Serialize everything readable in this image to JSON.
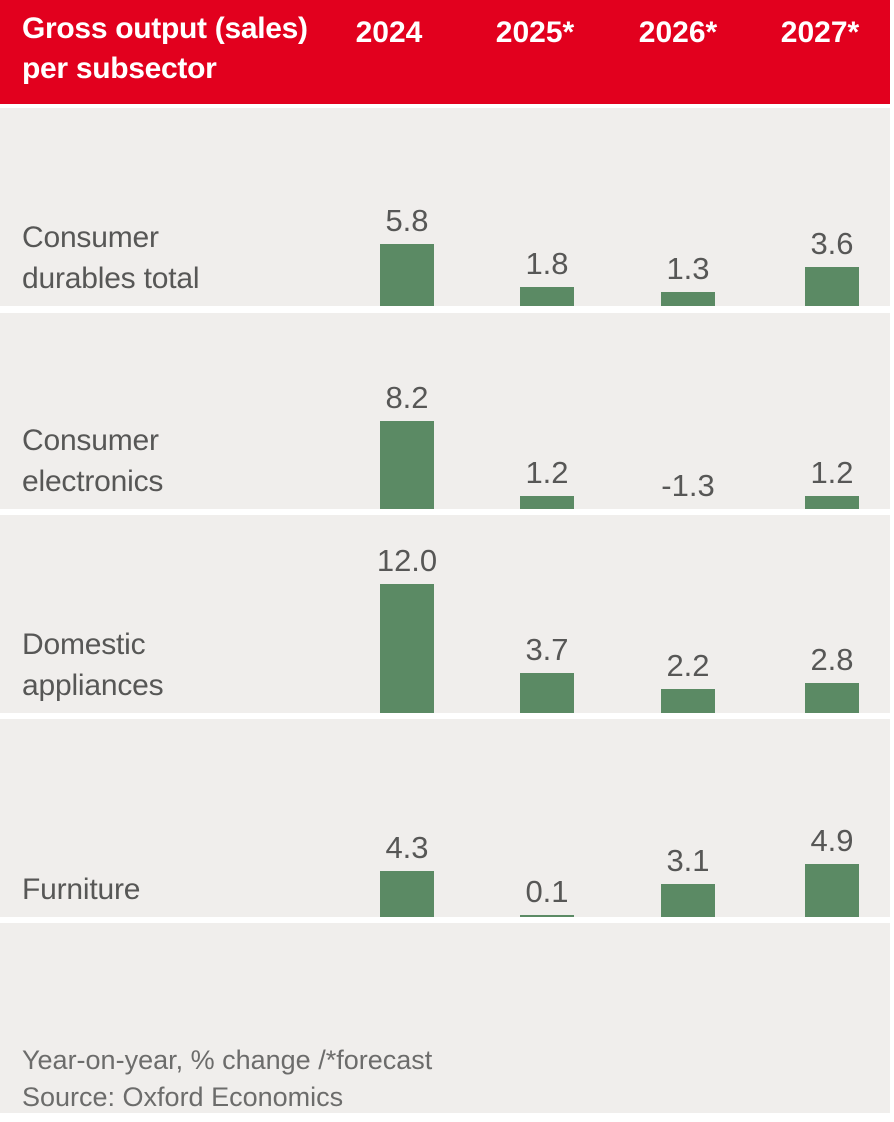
{
  "header": {
    "title_line1": "Gross output (sales)",
    "title_line2": "per subsector",
    "columns": [
      "2024",
      "2025*",
      "2026*",
      "2027*"
    ]
  },
  "chart_data": {
    "type": "bar",
    "title": "Gross output (sales) per subsector",
    "categories": [
      "2024",
      "2025*",
      "2026*",
      "2027*"
    ],
    "unit": "Year-on-year, % change",
    "legend": "none",
    "gridlines": false,
    "series": [
      {
        "name": "Consumer durables total",
        "label_lines": [
          "Consumer",
          "durables total"
        ],
        "values": [
          5.8,
          1.8,
          1.3,
          3.6
        ],
        "display": [
          "5.8",
          "1.8",
          "1.3",
          "3.6"
        ]
      },
      {
        "name": "Consumer electronics",
        "label_lines": [
          "Consumer",
          "electronics"
        ],
        "values": [
          8.2,
          1.2,
          -1.3,
          1.2
        ],
        "display": [
          "8.2",
          "1.2",
          "-1.3",
          "1.2"
        ]
      },
      {
        "name": "Domestic appliances",
        "label_lines": [
          "Domestic",
          "appliances"
        ],
        "values": [
          12.0,
          3.7,
          2.2,
          2.8
        ],
        "display": [
          "12.0",
          "3.7",
          "2.2",
          "2.8"
        ]
      },
      {
        "name": "Furniture",
        "label_lines": [
          "Furniture"
        ],
        "values": [
          4.3,
          0.1,
          3.1,
          4.9
        ],
        "display": [
          "4.3",
          "0.1",
          "3.1",
          "4.9"
        ]
      }
    ],
    "colors": {
      "positive_bar": "#5b8a64",
      "negative_bar": "#e2001e",
      "header_bg": "#e2001e",
      "header_text": "#ffffff",
      "row_bg": "#f0eeec",
      "label_text": "#575756",
      "value_text": "#575756",
      "footer_text": "#6c6c6b"
    }
  },
  "footer": {
    "note": "Year-on-year, % change /*forecast",
    "source": "Source: Oxford Economics"
  }
}
